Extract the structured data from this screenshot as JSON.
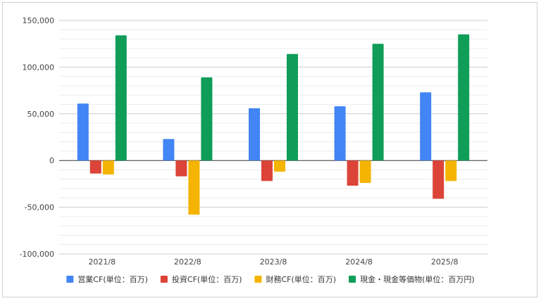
{
  "chart_data": {
    "type": "bar",
    "categories": [
      "2021/8",
      "2022/8",
      "2023/8",
      "2024/8",
      "2025/8"
    ],
    "series": [
      {
        "name": "営業CF(単位：百万)",
        "color": "#4285f4",
        "values": [
          61000,
          23000,
          56000,
          58000,
          73000
        ]
      },
      {
        "name": "投資CF(単位：百万)",
        "color": "#db4437",
        "values": [
          -14000,
          -17000,
          -22000,
          -27000,
          -41000
        ]
      },
      {
        "name": "財務CF(単位：百万)",
        "color": "#f4b400",
        "values": [
          -15000,
          -58000,
          -12000,
          -24000,
          -22000
        ]
      },
      {
        "name": "現金・現金等価物(単位：百万円)",
        "color": "#0f9d58",
        "values": [
          134000,
          89000,
          114000,
          125000,
          135000
        ]
      }
    ],
    "ylim": [
      -100000,
      150000
    ],
    "y_ticks": [
      "150,000",
      "100,000",
      "50,000",
      "0",
      "-50,000",
      "-100,000"
    ],
    "y_tick_values": [
      150000,
      100000,
      50000,
      0,
      -50000,
      -100000
    ],
    "grid": true,
    "legend_position": "bottom"
  }
}
